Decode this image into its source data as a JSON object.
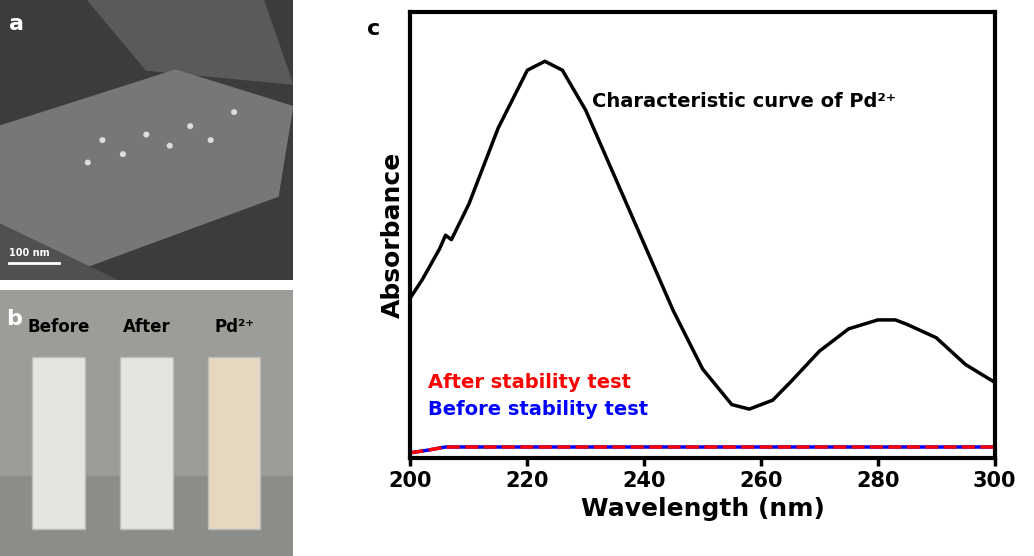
{
  "panels": [
    {
      "label": "a",
      "type": "image",
      "scale_bar": "100 nm"
    },
    {
      "label": "b",
      "type": "photo",
      "labels": [
        "Before",
        "After",
        "Pd²⁺"
      ]
    }
  ],
  "chart_data": {
    "label": "c",
    "type": "line",
    "x_label": "Wavelength (nm)",
    "y_label": "Absorbance",
    "xlim": [
      200,
      300
    ],
    "xticks": [
      200,
      220,
      240,
      260,
      280,
      300
    ],
    "ylim": [
      0,
      1
    ],
    "yticks": [],
    "tick_labels": "x",
    "series": [
      {
        "name": "Characteristic curve of Pd²⁺",
        "color": "#000000",
        "line_style": "solid",
        "x": [
          200,
          202,
          205,
          206,
          207,
          210,
          215,
          220,
          223,
          226,
          230,
          235,
          240,
          245,
          250,
          255,
          258,
          262,
          265,
          270,
          275,
          280,
          283,
          285,
          290,
          295,
          300
        ],
        "values": [
          0.36,
          0.4,
          0.47,
          0.5,
          0.49,
          0.57,
          0.74,
          0.87,
          0.89,
          0.87,
          0.78,
          0.63,
          0.48,
          0.33,
          0.2,
          0.12,
          0.11,
          0.13,
          0.17,
          0.24,
          0.29,
          0.31,
          0.31,
          0.3,
          0.27,
          0.21,
          0.17
        ]
      },
      {
        "name": "After stability test",
        "color": "#ff0000",
        "line_style": "dashed",
        "x": [
          200,
          203,
          206,
          220,
          240,
          260,
          280,
          300
        ],
        "values": [
          0.012,
          0.018,
          0.025,
          0.025,
          0.025,
          0.025,
          0.025,
          0.025
        ]
      },
      {
        "name": "Before stability test",
        "color": "#0000ff",
        "line_style": "solid",
        "x": [
          200,
          203,
          206,
          220,
          240,
          260,
          280,
          300
        ],
        "values": [
          0.012,
          0.018,
          0.025,
          0.025,
          0.025,
          0.025,
          0.025,
          0.025
        ]
      }
    ]
  }
}
